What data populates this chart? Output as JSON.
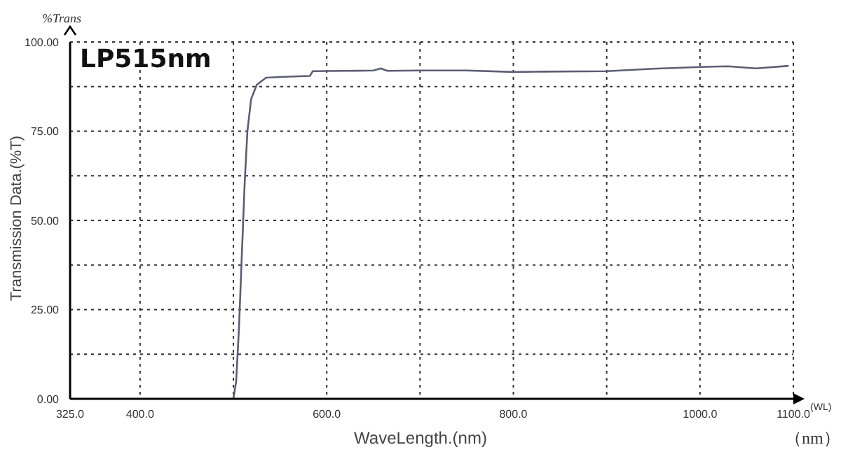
{
  "chart_data": {
    "type": "line",
    "xlabel": "WaveLength.(nm)",
    "ylabel": "Transmission Data.(%T)",
    "annotations": [
      "LP515nm",
      "%Trans",
      "(WL)",
      "（nm）"
    ],
    "xlim": [
      325,
      1100
    ],
    "xticks": [
      {
        "value": 325,
        "label": "325.0"
      },
      {
        "value": 400,
        "label": "400.0"
      },
      {
        "value": 500,
        "label": null
      },
      {
        "value": 600,
        "label": "600.0"
      },
      {
        "value": 700,
        "label": null
      },
      {
        "value": 800,
        "label": "800.0"
      },
      {
        "value": 900,
        "label": null
      },
      {
        "value": 1000,
        "label": "1000.0"
      },
      {
        "value": 1100,
        "label": "1100.0"
      }
    ],
    "ylim": [
      0,
      100
    ],
    "yticks": [
      {
        "value": 0,
        "label": "0.00"
      },
      {
        "value": 12.5,
        "label": null
      },
      {
        "value": 25,
        "label": "25.00"
      },
      {
        "value": 37.5,
        "label": null
      },
      {
        "value": 50,
        "label": "50.00"
      },
      {
        "value": 62.5,
        "label": null
      },
      {
        "value": 75,
        "label": "75.00"
      },
      {
        "value": 87.5,
        "label": null
      },
      {
        "value": 100,
        "label": "100.00"
      }
    ],
    "grid": true,
    "marker": "none",
    "line_style": "solid",
    "series": [
      {
        "color": "#5a5e74",
        "x": [
          500,
          503,
          506,
          509,
          512,
          515,
          519,
          525,
          535,
          560,
          582,
          585,
          620,
          650,
          658,
          665,
          700,
          750,
          800,
          830,
          900,
          950,
          1000,
          1030,
          1060,
          1095
        ],
        "values": [
          0,
          5,
          20,
          40,
          60,
          75,
          84,
          88,
          90,
          90.3,
          90.5,
          91.8,
          91.9,
          92,
          92.6,
          91.9,
          92,
          92,
          91.6,
          91.7,
          91.8,
          92.5,
          93,
          93.2,
          92.6,
          93.3
        ]
      }
    ]
  }
}
